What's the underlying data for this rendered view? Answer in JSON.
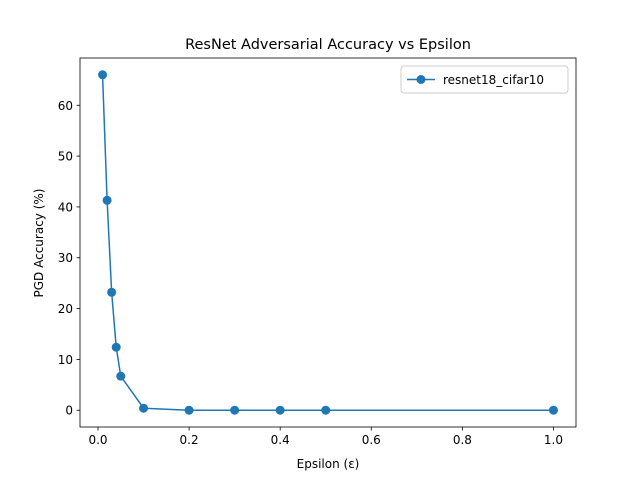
{
  "chart_data": {
    "type": "line",
    "title": "ResNet Adversarial Accuracy vs Epsilon",
    "xlabel": "Epsilon (ε)",
    "ylabel": "PGD Accuracy (%)",
    "xlim": [
      -0.0395,
      1.0495
    ],
    "ylim": [
      -3.3,
      69.3
    ],
    "xticks": [
      "0.0",
      "0.2",
      "0.4",
      "0.6",
      "0.8",
      "1.0"
    ],
    "yticks": [
      "0",
      "10",
      "20",
      "30",
      "40",
      "50",
      "60"
    ],
    "grid": false,
    "legend_position": "upper right",
    "series": [
      {
        "name": "resnet18_cifar10",
        "color": "#1f77b4",
        "marker": "circle",
        "x": [
          0.01,
          0.02,
          0.03,
          0.04,
          0.05,
          0.1,
          0.2,
          0.3,
          0.4,
          0.5,
          1.0
        ],
        "y": [
          66.0,
          41.3,
          23.2,
          12.4,
          6.7,
          0.4,
          0.0,
          0.0,
          0.0,
          0.0,
          0.0
        ]
      }
    ]
  }
}
